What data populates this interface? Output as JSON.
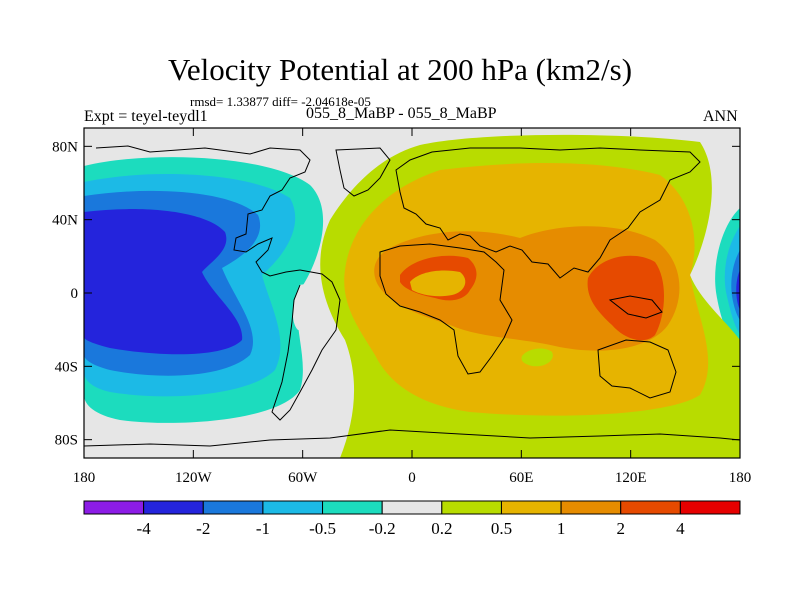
{
  "chart_data": {
    "type": "contour-map",
    "title": "Velocity Potential at 200 hPa (km2/s)",
    "stats": "rmsd= 1.33877 diff= -2.04618e-05",
    "experiment": "Expt = teyel-teydl1",
    "cases": "055_8_MaBP - 055_8_MaBP",
    "season": "ANN",
    "x_ticks": [
      "180",
      "120W",
      "60W",
      "0",
      "60E",
      "120E",
      "180"
    ],
    "x_range": [
      -180,
      180
    ],
    "y_ticks": [
      "80N",
      "40N",
      "0",
      "40S",
      "80S"
    ],
    "y_range": [
      -90,
      90
    ],
    "y_tick_values": [
      80,
      40,
      0,
      -40,
      -80
    ],
    "colorbar": {
      "labels": [
        "-4",
        "-2",
        "-1",
        "-0.5",
        "-0.2",
        "0.2",
        "0.5",
        "1",
        "2",
        "4"
      ],
      "colors": [
        "#8c1ce6",
        "#2424dc",
        "#1a78dc",
        "#1cbae6",
        "#1cdcbe",
        "#e6e6e6",
        "#b8dc00",
        "#e6b400",
        "#e68c00",
        "#e64a00",
        "#e60000"
      ]
    },
    "colors": {
      "neg4": "#2424dc",
      "neg2": "#1a78dc",
      "neg1": "#1cbae6",
      "neg05": "#1cdcbe",
      "zero": "#e6e6e6",
      "pos02": "#b8dc00",
      "pos05": "#e6b400",
      "pos1": "#e68c00",
      "pos2": "#e64a00"
    }
  }
}
